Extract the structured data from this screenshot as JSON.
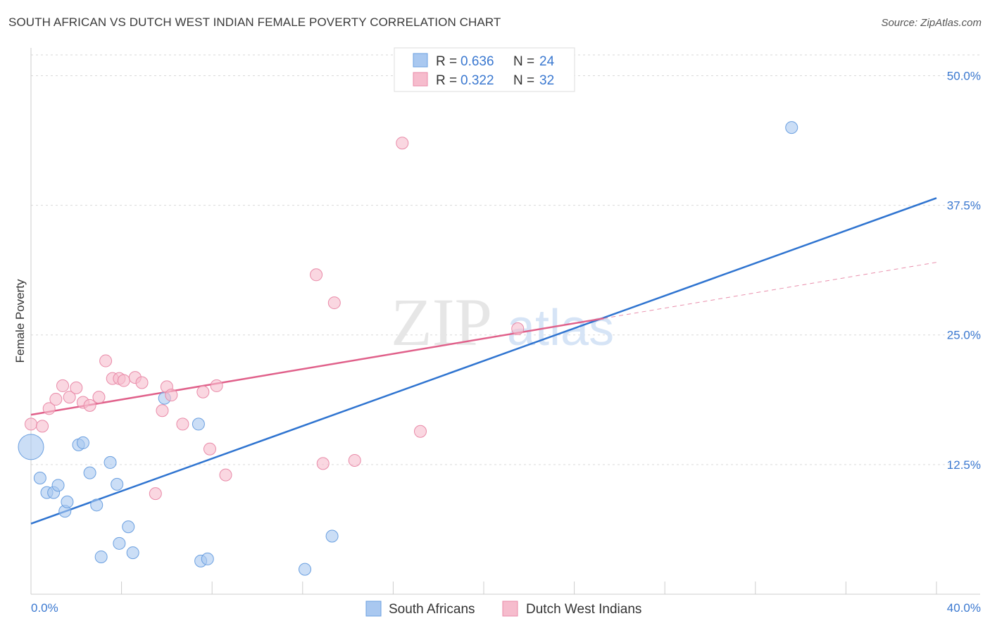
{
  "title": "SOUTH AFRICAN VS DUTCH WEST INDIAN FEMALE POVERTY CORRELATION CHART",
  "source": "Source: ZipAtlas.com",
  "watermark": {
    "zip": "ZIP",
    "atlas": "atlas"
  },
  "colors": {
    "blue_fill": "#a9c8f0",
    "blue_stroke": "#6a9fe0",
    "blue_line": "#2f74d0",
    "pink_fill": "#f6bccd",
    "pink_stroke": "#e98aa8",
    "pink_line": "#e0608a",
    "axis_text": "#3a78d0",
    "grid": "#d9d9d9"
  },
  "legend": {
    "r_label": "R =",
    "n_label": "N =",
    "rows": [
      {
        "series": "South Africans",
        "r": "0.636",
        "n": "24"
      },
      {
        "series": "Dutch West Indians",
        "r": "0.322",
        "n": "32"
      }
    ]
  },
  "chart_data": {
    "type": "scatter",
    "xlabel": "",
    "ylabel": "Female Poverty",
    "xlim": [
      0,
      40
    ],
    "ylim": [
      0,
      52
    ],
    "x_tick_labels": [
      {
        "value": 0,
        "label": "0.0%"
      },
      {
        "value": 40,
        "label": "40.0%"
      }
    ],
    "y_tick_labels": [
      {
        "value": 12.5,
        "label": "12.5%"
      },
      {
        "value": 25.0,
        "label": "25.0%"
      },
      {
        "value": 37.5,
        "label": "37.5%"
      },
      {
        "value": 50.0,
        "label": "50.0%"
      }
    ],
    "series": [
      {
        "name": "South Africans",
        "color": "blue",
        "points": [
          [
            0.0,
            14.2,
            "large"
          ],
          [
            0.4,
            11.2
          ],
          [
            0.7,
            9.8
          ],
          [
            1.0,
            9.8
          ],
          [
            1.2,
            10.5
          ],
          [
            1.5,
            8.0
          ],
          [
            1.6,
            8.9
          ],
          [
            2.1,
            14.4
          ],
          [
            2.3,
            14.6
          ],
          [
            2.6,
            11.7
          ],
          [
            2.9,
            8.6
          ],
          [
            3.1,
            3.6
          ],
          [
            3.5,
            12.7
          ],
          [
            3.8,
            10.6
          ],
          [
            3.9,
            4.9
          ],
          [
            4.3,
            6.5
          ],
          [
            4.5,
            4.0
          ],
          [
            5.9,
            18.9
          ],
          [
            7.4,
            16.4
          ],
          [
            7.5,
            3.2
          ],
          [
            7.8,
            3.4
          ],
          [
            12.1,
            2.4
          ],
          [
            13.3,
            5.6
          ],
          [
            33.6,
            45.0
          ]
        ]
      },
      {
        "name": "Dutch West Indians",
        "color": "pink",
        "points": [
          [
            0.0,
            16.4
          ],
          [
            0.5,
            16.2
          ],
          [
            0.8,
            17.9
          ],
          [
            1.1,
            18.8
          ],
          [
            1.4,
            20.1
          ],
          [
            1.7,
            19.0
          ],
          [
            2.0,
            19.9
          ],
          [
            2.3,
            18.5
          ],
          [
            2.6,
            18.2
          ],
          [
            3.0,
            19.0
          ],
          [
            3.3,
            22.5
          ],
          [
            3.6,
            20.8
          ],
          [
            3.9,
            20.8
          ],
          [
            4.1,
            20.6
          ],
          [
            4.6,
            20.9
          ],
          [
            4.9,
            20.4
          ],
          [
            5.5,
            9.7
          ],
          [
            5.8,
            17.7
          ],
          [
            6.0,
            20.0
          ],
          [
            6.2,
            19.2
          ],
          [
            6.7,
            16.4
          ],
          [
            7.6,
            19.5
          ],
          [
            7.9,
            14.0
          ],
          [
            8.2,
            20.1
          ],
          [
            8.6,
            11.5
          ],
          [
            12.6,
            30.8
          ],
          [
            12.9,
            12.6
          ],
          [
            13.4,
            28.1
          ],
          [
            14.3,
            12.9
          ],
          [
            16.4,
            43.5
          ],
          [
            17.2,
            15.7
          ],
          [
            21.5,
            25.6
          ]
        ]
      }
    ],
    "trend_lines": [
      {
        "series": "South Africans",
        "x0": 0,
        "y0": 6.8,
        "x1": 40,
        "y1": 38.2,
        "dashed_from": null
      },
      {
        "series": "Dutch West Indians",
        "x0": 0,
        "y0": 17.3,
        "x1": 40,
        "y1": 32.0,
        "solid_until": 25.3
      }
    ]
  }
}
